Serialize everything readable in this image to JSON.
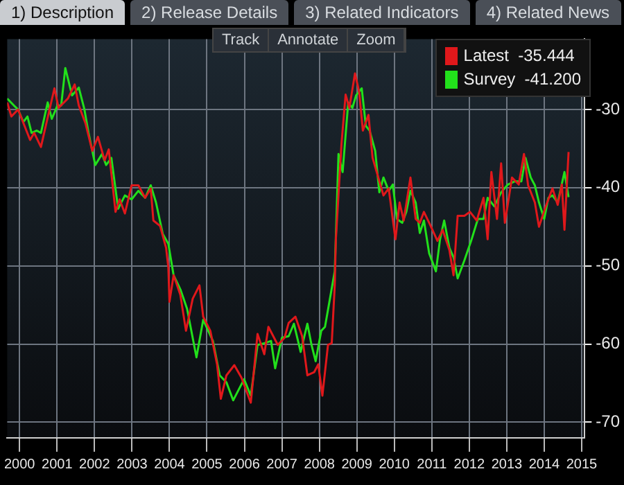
{
  "chart_data": {
    "type": "line",
    "annotations": [
      "1) Description",
      "2) Release Details",
      "3) Related Indicators",
      "4) Related News",
      "Track",
      "Annotate",
      "Zoom"
    ],
    "series": [
      {
        "name": "Latest  -35.444",
        "color": "#e0181b",
        "x": [
          2000.17,
          2000.28,
          2000.46,
          2000.78,
          2000.89,
          2001.07,
          2001.18,
          2001.43,
          2001.54,
          2001.79,
          2001.97,
          2002.08,
          2002.26,
          2002.44,
          2002.59,
          2002.77,
          2002.88,
          2003.06,
          2003.17,
          2003.31,
          2003.49,
          2003.67,
          2003.85,
          2004,
          2004.07,
          2004.25,
          2004.41,
          2004.47,
          2004.5,
          2004.61,
          2004.79,
          2004.94,
          2005.12,
          2005.3,
          2005.4,
          2005.59,
          2005.77,
          2005.87,
          2006.02,
          2006.23,
          2006.42,
          2006.67,
          2006.85,
          2007.03,
          2007.14,
          2007.39,
          2007.57,
          2007.68,
          2007.86,
          2008.04,
          2008.18,
          2008.36,
          2008.47,
          2008.58,
          2008.73,
          2008.83,
          2008.91,
          2008.94,
          2009.09,
          2009.2,
          2009.3,
          2009.45,
          2009.56,
          2009.66,
          2009.81,
          2009.92,
          2010.03,
          2010.21,
          2010.35,
          2010.53,
          2010.64,
          2010.75,
          2010.93,
          2011.07,
          2011.18,
          2011.29,
          2011.47,
          2011.65,
          2011.79,
          2011.97,
          2012.08,
          2012.19,
          2012.37,
          2012.52,
          2012.7,
          2012.88,
          2012.99,
          2013.09,
          2013.24,
          2013.35,
          2013.45,
          2013.64,
          2013.82,
          2013.96,
          2014.07,
          2014.25,
          2014.36,
          2014.54,
          2014.72,
          2014.86,
          2014.97,
          2015.04,
          2015.15
        ],
        "values": [
          -29.1,
          -30.9,
          -30,
          -33.9,
          -33,
          -34.8,
          -32.5,
          -27.3,
          -29.8,
          -28.6,
          -26.8,
          -29.5,
          -31.8,
          -35.3,
          -33.5,
          -36.5,
          -35.1,
          -43.1,
          -41.5,
          -43.3,
          -39.7,
          -39.7,
          -41.3,
          -40.1,
          -44.2,
          -44.9,
          -47.7,
          -50.2,
          -54.6,
          -51.2,
          -53.7,
          -58.3,
          -54.2,
          -52.5,
          -56.5,
          -58.3,
          -62.6,
          -67,
          -64,
          -62.7,
          -64.3,
          -67.5,
          -58.7,
          -61.3,
          -57.8,
          -60.1,
          -59.2,
          -57.3,
          -56.5,
          -59,
          -64,
          -63.6,
          -62.6,
          -66.6,
          -60.1,
          -59.9,
          -52.5,
          -46.6,
          -34.4,
          -28.1,
          -29.8,
          -25.4,
          -27.7,
          -32.7,
          -30.7,
          -36.2,
          -38,
          -41,
          -40.1,
          -46.6,
          -41.9,
          -44.2,
          -38.7,
          -44,
          -44.5,
          -43.1,
          -44.9,
          -46.8,
          -45.4,
          -48,
          -51.2,
          -43.6,
          -43.6,
          -43.1,
          -44.2,
          -41.3,
          -46.6,
          -38,
          -44,
          -36.9,
          -44.5,
          -38.7,
          -39.6,
          -35.7,
          -39.7,
          -41.9,
          -45,
          -42.4,
          -40.1,
          -42.2,
          -39.6,
          -45.4,
          -35.444
        ]
      },
      {
        "name": "Survey  -41.200",
        "color": "#22e01b",
        "x": [
          2000.17,
          2000.35,
          2000.46,
          2000.6,
          2000.71,
          2000.82,
          2000.96,
          2001.07,
          2001.25,
          2001.36,
          2001.51,
          2001.61,
          2001.72,
          2001.9,
          2002.08,
          2002.23,
          2002.34,
          2002.52,
          2002.7,
          2002.81,
          2002.95,
          2003.13,
          2003.31,
          2003.49,
          2003.67,
          2003.85,
          2004,
          2004.14,
          2004.32,
          2004.47,
          2004.61,
          2004.79,
          2004.97,
          2005.22,
          2005.4,
          2005.66,
          2005.84,
          2006.02,
          2006.2,
          2006.49,
          2006.67,
          2006.85,
          2007.03,
          2007.21,
          2007.32,
          2007.5,
          2007.68,
          2007.82,
          2008,
          2008.18,
          2008.29,
          2008.4,
          2008.55,
          2008.65,
          2008.76,
          2008.91,
          2009.01,
          2009.12,
          2009.27,
          2009.38,
          2009.48,
          2009.63,
          2009.74,
          2009.84,
          2009.99,
          2010.1,
          2010.21,
          2010.35,
          2010.46,
          2010.57,
          2010.71,
          2010.82,
          2010.93,
          2011.07,
          2011.18,
          2011.29,
          2011.43,
          2011.61,
          2011.72,
          2011.83,
          2011.97,
          2012.08,
          2012.19,
          2012.37,
          2012.55,
          2012.73,
          2012.88,
          2012.99,
          2013.17,
          2013.35,
          2013.53,
          2013.71,
          2013.89,
          2014,
          2014.14,
          2014.25,
          2014.36,
          2014.5,
          2014.61,
          2014.72,
          2014.86,
          2015.04,
          2015.15
        ],
        "values": [
          -28.6,
          -29.5,
          -30,
          -31.6,
          -30.9,
          -33,
          -32.7,
          -33,
          -29.1,
          -31.2,
          -29.5,
          -29.5,
          -24.7,
          -28.2,
          -27.2,
          -30,
          -33,
          -37.1,
          -35.7,
          -37.1,
          -36.2,
          -42.7,
          -41,
          -41.5,
          -40.4,
          -41.3,
          -39.7,
          -41.9,
          -45.9,
          -47.2,
          -51.2,
          -53,
          -55.5,
          -61.7,
          -56.9,
          -59.6,
          -64,
          -64.9,
          -67.2,
          -64.5,
          -66.6,
          -60.1,
          -59.9,
          -59.6,
          -63.1,
          -59.2,
          -59,
          -57.4,
          -61,
          -57.4,
          -60.1,
          -62.2,
          -58.3,
          -57.8,
          -54.8,
          -50.7,
          -35.7,
          -38,
          -29.1,
          -29.8,
          -28.2,
          -27.3,
          -32.1,
          -32.7,
          -35.3,
          -40.6,
          -38.7,
          -40.4,
          -39.6,
          -44,
          -44.5,
          -43.1,
          -40.4,
          -41.9,
          -45.8,
          -44.2,
          -48.4,
          -50.7,
          -46.6,
          -44.2,
          -47.7,
          -48.9,
          -51.6,
          -49.3,
          -46.8,
          -44,
          -44,
          -41.3,
          -42.4,
          -40.6,
          -39.6,
          -39.2,
          -39.2,
          -36.2,
          -38.7,
          -39.7,
          -41.9,
          -44,
          -41.3,
          -41,
          -41.9,
          -38,
          -41.2
        ]
      }
    ],
    "xlim": [
      2000.17,
      2015.58
    ],
    "xticks": [
      {
        "value": 2000.5,
        "label": "2000"
      },
      {
        "value": 2001.5,
        "label": "2001"
      },
      {
        "value": 2002.5,
        "label": "2002"
      },
      {
        "value": 2003.5,
        "label": "2003"
      },
      {
        "value": 2004.5,
        "label": "2004"
      },
      {
        "value": 2005.5,
        "label": "2005"
      },
      {
        "value": 2006.5,
        "label": "2006"
      },
      {
        "value": 2007.5,
        "label": "2007"
      },
      {
        "value": 2008.5,
        "label": "2008"
      },
      {
        "value": 2009.5,
        "label": "2009"
      },
      {
        "value": 2010.5,
        "label": "2010"
      },
      {
        "value": 2011.5,
        "label": "2011"
      },
      {
        "value": 2012.5,
        "label": "2012"
      },
      {
        "value": 2013.5,
        "label": "2013"
      },
      {
        "value": 2014.5,
        "label": "2014"
      },
      {
        "value": 2015.5,
        "label": "2015"
      }
    ],
    "ylim": [
      -72,
      -21
    ],
    "yticks": [
      -70,
      -60,
      -50,
      -40,
      -30
    ],
    "grid": true,
    "legend": "top right",
    "marker": "none",
    "line_style": "solid"
  }
}
